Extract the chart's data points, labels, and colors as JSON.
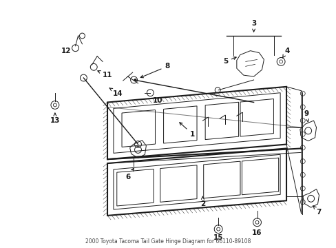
{
  "title": "2000 Toyota Tacoma Tail Gate Hinge Diagram for 66110-89108",
  "bg_color": "#ffffff",
  "fig_width": 4.89,
  "fig_height": 3.6,
  "dpi": 100,
  "line_color": "#1a1a1a",
  "label_fontsize": 7.5
}
